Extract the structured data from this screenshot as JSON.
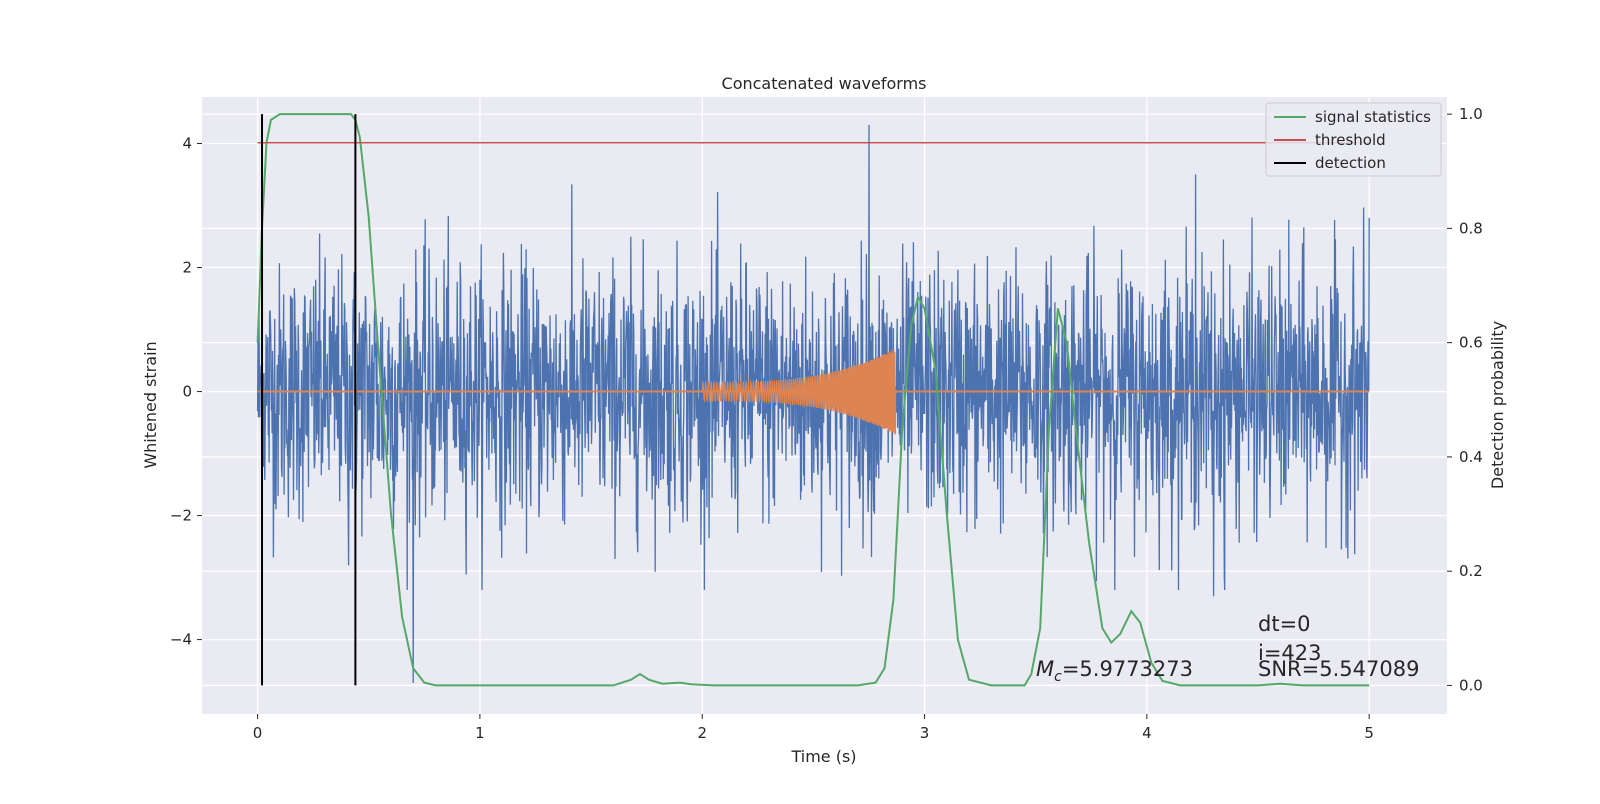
{
  "chart_data": {
    "type": "line",
    "title": "Concatenated waveforms",
    "xlabel": "Time (s)",
    "ylabel_left": "Whitened strain",
    "ylabel_right": "Detection probability",
    "xlim": [
      -0.25,
      5.35
    ],
    "ylim_left": [
      -5.2,
      4.75
    ],
    "ylim_right": [
      -0.05,
      1.03
    ],
    "x_ticks": [
      0,
      1,
      2,
      3,
      4,
      5
    ],
    "x_tick_labels": [
      "0",
      "1",
      "2",
      "3",
      "4",
      "5"
    ],
    "y_left_ticks": [
      -4,
      -2,
      0,
      2,
      4
    ],
    "y_left_tick_labels": [
      "−4",
      "−2",
      "0",
      "2",
      "4"
    ],
    "y_right_ticks": [
      0.0,
      0.2,
      0.4,
      0.6,
      0.8,
      1.0
    ],
    "y_right_tick_labels": [
      "0.0",
      "0.2",
      "0.4",
      "0.6",
      "0.8",
      "1.0"
    ],
    "grid": true,
    "legend_location": "upper right",
    "colors": {
      "background": "#eaeaf2",
      "grid": "#ffffff",
      "strain": "#4c72b0",
      "template": "#dd8452",
      "statistics": "#55a868",
      "threshold": "#c44e52",
      "detection": "#000000"
    },
    "series": [
      {
        "name": "signal statistics",
        "axis": "right",
        "points": [
          [
            0.0,
            0.6
          ],
          [
            0.02,
            0.8
          ],
          [
            0.04,
            0.95
          ],
          [
            0.06,
            0.99
          ],
          [
            0.1,
            1.0
          ],
          [
            0.42,
            1.0
          ],
          [
            0.44,
            0.99
          ],
          [
            0.46,
            0.96
          ],
          [
            0.5,
            0.82
          ],
          [
            0.55,
            0.55
          ],
          [
            0.6,
            0.3
          ],
          [
            0.65,
            0.12
          ],
          [
            0.7,
            0.03
          ],
          [
            0.75,
            0.005
          ],
          [
            0.8,
            0.0
          ],
          [
            1.6,
            0.0
          ],
          [
            1.68,
            0.01
          ],
          [
            1.72,
            0.02
          ],
          [
            1.76,
            0.01
          ],
          [
            1.82,
            0.003
          ],
          [
            1.9,
            0.005
          ],
          [
            1.95,
            0.002
          ],
          [
            2.05,
            0.0
          ],
          [
            2.7,
            0.0
          ],
          [
            2.78,
            0.005
          ],
          [
            2.82,
            0.03
          ],
          [
            2.86,
            0.15
          ],
          [
            2.9,
            0.45
          ],
          [
            2.94,
            0.63
          ],
          [
            2.97,
            0.68
          ],
          [
            3.0,
            0.66
          ],
          [
            3.05,
            0.55
          ],
          [
            3.1,
            0.3
          ],
          [
            3.15,
            0.08
          ],
          [
            3.2,
            0.01
          ],
          [
            3.3,
            0.0
          ],
          [
            3.45,
            0.0
          ],
          [
            3.48,
            0.02
          ],
          [
            3.52,
            0.1
          ],
          [
            3.56,
            0.45
          ],
          [
            3.6,
            0.66
          ],
          [
            3.64,
            0.6
          ],
          [
            3.68,
            0.45
          ],
          [
            3.74,
            0.25
          ],
          [
            3.8,
            0.1
          ],
          [
            3.84,
            0.075
          ],
          [
            3.88,
            0.09
          ],
          [
            3.93,
            0.13
          ],
          [
            3.97,
            0.11
          ],
          [
            4.02,
            0.04
          ],
          [
            4.07,
            0.008
          ],
          [
            4.15,
            0.0
          ],
          [
            4.5,
            0.0
          ],
          [
            4.6,
            0.003
          ],
          [
            4.7,
            0.0
          ],
          [
            5.0,
            0.0
          ]
        ]
      },
      {
        "name": "threshold",
        "axis": "right",
        "x": [
          0.0,
          5.0
        ],
        "value": 0.95
      },
      {
        "name": "detection",
        "axis": "right",
        "x_positions": [
          0.02,
          0.44
        ],
        "y_range": [
          0.0,
          1.0
        ]
      }
    ],
    "noise": {
      "axis": "left",
      "x_range": [
        0.0,
        5.0
      ],
      "typical_amplitude": 1.2,
      "outliers": [
        [
          0.41,
          -2.8
        ],
        [
          0.7,
          -4.7
        ],
        [
          2.75,
          4.3
        ],
        [
          4.22,
          3.5
        ],
        [
          4.3,
          -3.3
        ],
        [
          4.35,
          -3.2
        ],
        [
          5.0,
          2.8
        ]
      ]
    },
    "template": {
      "axis": "left",
      "chirp_start": 2.0,
      "chirp_end": 2.87,
      "amplitude_start": 0.15,
      "amplitude_peak": 0.7
    },
    "annotations": {
      "chirp_mass_symbol": "M",
      "chirp_mass_subscript": "c",
      "chirp_mass_value": "=5.9773273",
      "dt": "dt=0",
      "index": "i=423",
      "snr": "SNR=5.547089"
    }
  }
}
